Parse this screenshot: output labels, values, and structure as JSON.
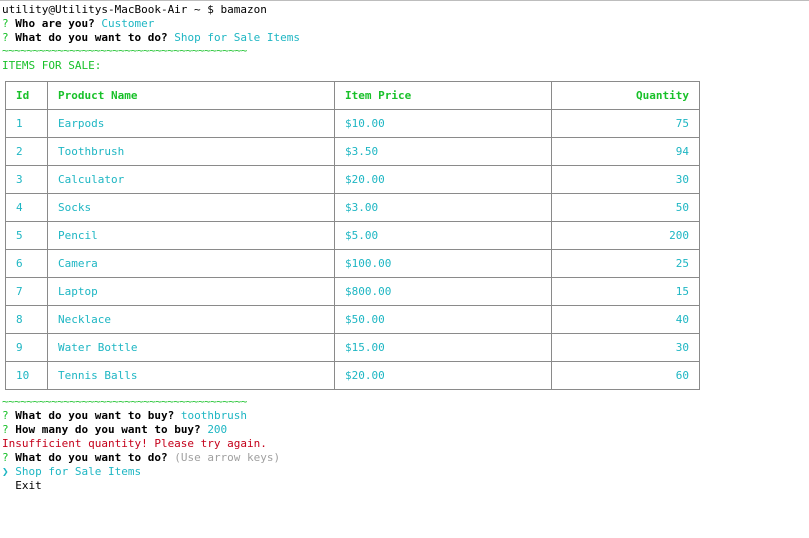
{
  "prompt_line": "utility@Utilitys-MacBook-Air ~ $ bamazon",
  "q1": {
    "mark": "?",
    "question": "Who are you?",
    "answer": "Customer"
  },
  "q2": {
    "mark": "?",
    "question": "What do you want to do?",
    "answer": "Shop for Sale Items"
  },
  "divider": "~~~~~~~~~~~~~~~~~~~~~~~~~~~~~~~~~~~~~~~~",
  "items_header": "ITEMS FOR SALE:",
  "table": {
    "columns": [
      "Id",
      "Product Name",
      "Item Price",
      "Quantity"
    ],
    "rows": [
      [
        "1",
        "Earpods",
        "$10.00",
        "75"
      ],
      [
        "2",
        "Toothbrush",
        "$3.50",
        "94"
      ],
      [
        "3",
        "Calculator",
        "$20.00",
        "30"
      ],
      [
        "4",
        "Socks",
        "$3.00",
        "50"
      ],
      [
        "5",
        "Pencil",
        "$5.00",
        "200"
      ],
      [
        "6",
        "Camera",
        "$100.00",
        "25"
      ],
      [
        "7",
        "Laptop",
        "$800.00",
        "15"
      ],
      [
        "8",
        "Necklace",
        "$50.00",
        "40"
      ],
      [
        "9",
        "Water Bottle",
        "$15.00",
        "30"
      ],
      [
        "10",
        "Tennis Balls",
        "$20.00",
        "60"
      ]
    ]
  },
  "q3": {
    "mark": "?",
    "question": "What do you want to buy?",
    "answer": "toothbrush"
  },
  "q4": {
    "mark": "?",
    "question": "How many do you want to buy?",
    "answer": "200"
  },
  "error": "Insufficient quantity! Please try again.",
  "q5": {
    "mark": "?",
    "question": "What do you want to do?",
    "hint": "(Use arrow keys)"
  },
  "menu": {
    "pointer": "❯",
    "options": [
      "Shop for Sale Items",
      "Exit"
    ]
  },
  "colors": {
    "green": "#19c12a",
    "cyan": "#1eb6c3",
    "red": "#c4001a",
    "gray": "#a0a0a0"
  }
}
